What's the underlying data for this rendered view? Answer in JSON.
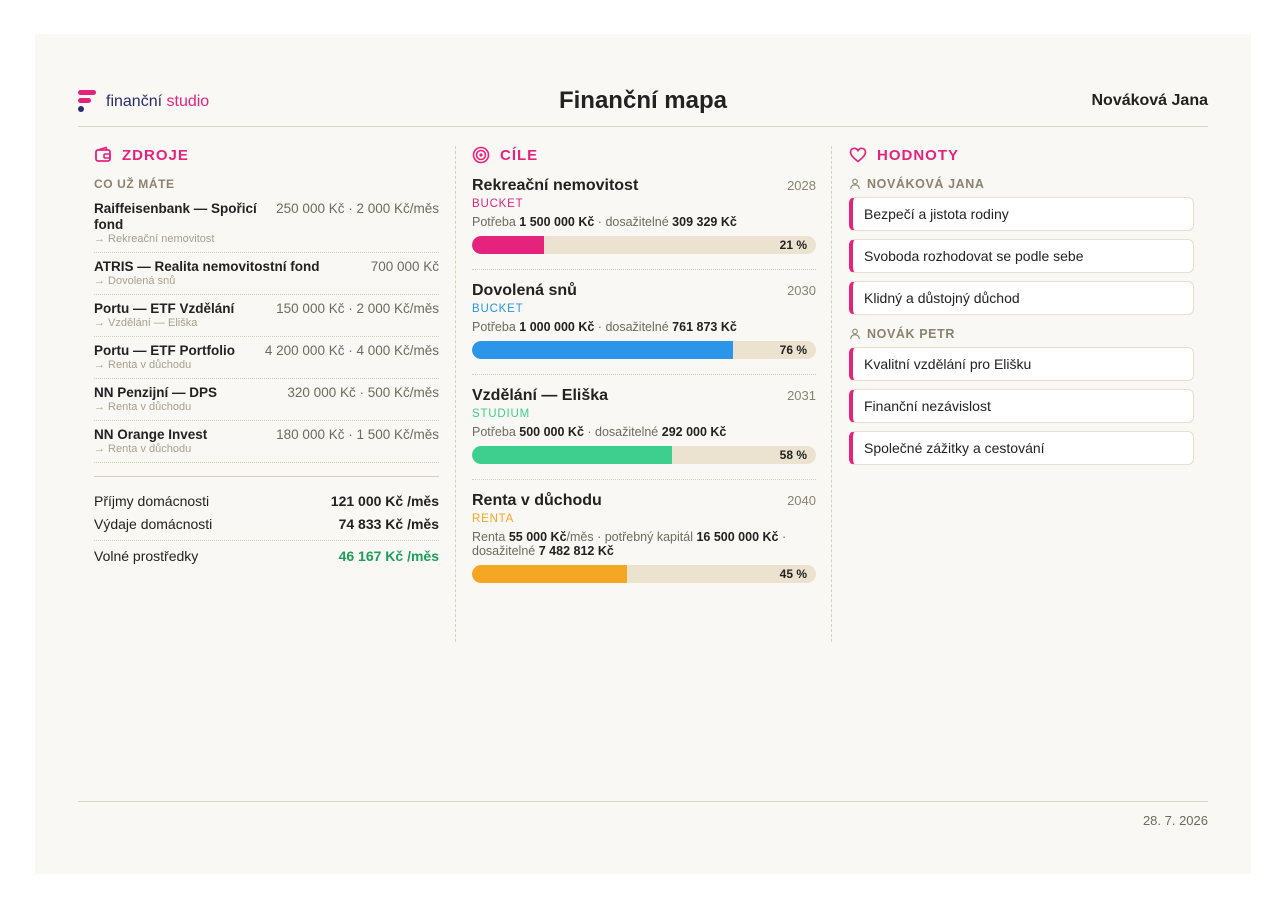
{
  "brand": {
    "name_part1": "finanční",
    "name_part2": "studio",
    "colors": {
      "pink": "#e5237d",
      "navy": "#2a2d6e"
    }
  },
  "header": {
    "title": "Finanční mapa",
    "user": "Nováková Jana"
  },
  "sources": {
    "title": "ZDROJE",
    "icon": "wallet-icon",
    "subtitle": "CO UŽ MÁTE",
    "items": [
      {
        "name": "Raiffeisenbank — Spořicí fond",
        "amount": "250 000 Kč · 2 000 Kč/měs",
        "target": "→ Rekreační nemovitost"
      },
      {
        "name": "ATRIS — Realita nemovitostní fond",
        "amount": "700 000 Kč",
        "target": "→ Dovolená snů"
      },
      {
        "name": "Portu — ETF Vzdělání",
        "amount": "150 000 Kč · 2 000 Kč/měs",
        "target": "→ Vzdělání — Eliška"
      },
      {
        "name": "Portu — ETF Portfolio",
        "amount": "4 200 000 Kč · 4 000 Kč/měs",
        "target": "→ Renta v důchodu"
      },
      {
        "name": "NN Penzijní — DPS",
        "amount": "320 000 Kč · 500 Kč/měs",
        "target": "→ Renta v důchodu"
      },
      {
        "name": "NN Orange Invest",
        "amount": "180 000 Kč · 1 500 Kč/měs",
        "target": "→ Renta v důchodu"
      }
    ],
    "totals": {
      "income_label": "Příjmy domácnosti",
      "income_value": "121 000 Kč /měs",
      "expense_label": "Výdaje domácnosti",
      "expense_value": "74 833 Kč /měs",
      "free_label": "Volné prostředky",
      "free_value": "46 167 Kč /měs",
      "free_color": "#1e9e5a"
    }
  },
  "goals": {
    "title": "CÍLE",
    "icon": "target-icon",
    "items": [
      {
        "name": "Rekreační nemovitost",
        "year": "2028",
        "type": "BUCKET",
        "color": "#e5237d",
        "need_label": "Potřeba",
        "need_value": "1 500 000 Kč",
        "sep": " · ",
        "reach_label": "dosažitelné",
        "reach_value": "309 329 Kč",
        "progress": 21,
        "pct_label": "21 %"
      },
      {
        "name": "Dovolená snů",
        "year": "2030",
        "type": "BUCKET",
        "color": "#2b95e9",
        "need_label": "Potřeba",
        "need_value": "1 000 000 Kč",
        "sep": " · ",
        "reach_label": "dosažitelné",
        "reach_value": "761 873 Kč",
        "progress": 76,
        "pct_label": "76 %"
      },
      {
        "name": "Vzdělání — Eliška",
        "year": "2031",
        "type": "STUDIUM",
        "color": "#3ecf8e",
        "need_label": "Potřeba",
        "need_value": "500 000 Kč",
        "sep": " · ",
        "reach_label": "dosažitelné",
        "reach_value": "292 000 Kč",
        "progress": 58,
        "pct_label": "58 %"
      },
      {
        "name": "Renta v důchodu",
        "year": "2040",
        "type": "RENTA",
        "color": "#f5a623",
        "rent_label": "Renta",
        "rent_value": "55 000 Kč",
        "rent_unit": "/měs · potřebný kapitál",
        "capital_value": "16 500 000 Kč",
        "reach_label": "· dosažitelné",
        "reach_value": "7 482 812 Kč",
        "progress": 45,
        "pct_label": "45 %"
      }
    ]
  },
  "values": {
    "title": "HODNOTY",
    "icon": "heart-icon",
    "people": [
      {
        "name": "NOVÁKOVÁ JANA",
        "items": [
          "Bezpečí a jistota rodiny",
          "Svoboda rozhodovat se podle sebe",
          "Klidný a důstojný důchod"
        ]
      },
      {
        "name": "NOVÁK PETR",
        "items": [
          "Kvalitní vzdělání pro Elišku",
          "Finanční nezávislost",
          "Společné zážitky a cestování"
        ]
      }
    ]
  },
  "footer": {
    "date": "28. 7. 2026"
  }
}
